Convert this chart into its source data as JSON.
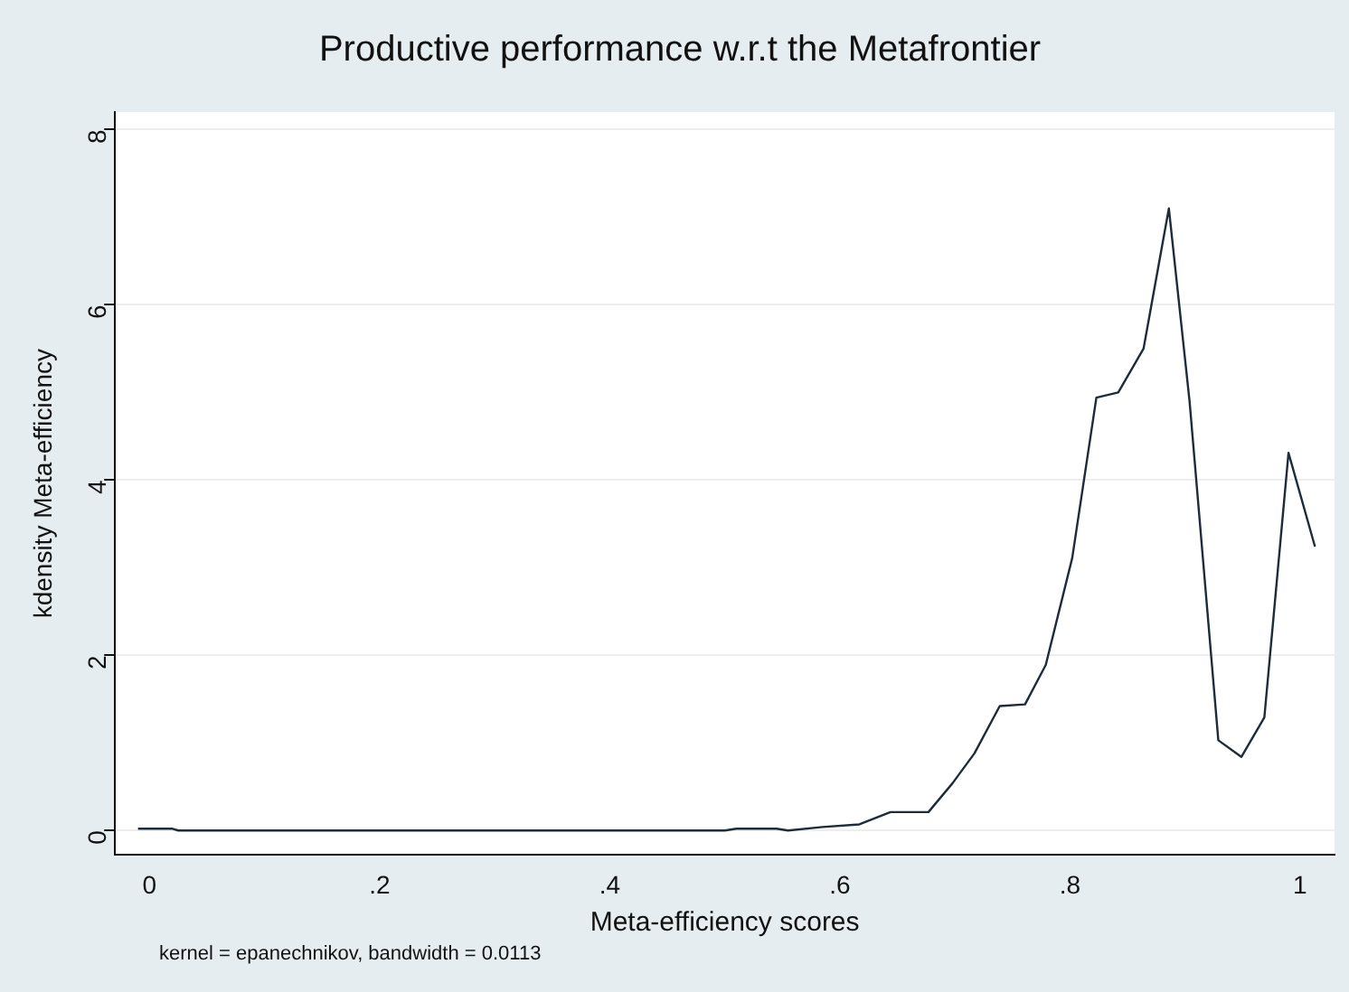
{
  "chart_data": {
    "type": "line",
    "title": "Productive performance w.r.t the Metafrontier",
    "xlabel": "Meta-efficiency scores",
    "ylabel": "kdensity Meta-efficiency",
    "annotations": [
      "kernel = epanechnikov, bandwidth = 0.0113"
    ],
    "x": [
      -0.01,
      0.02,
      0.025,
      0.5,
      0.51,
      0.545,
      0.555,
      0.585,
      0.617,
      0.644,
      0.677,
      0.698,
      0.717,
      0.739,
      0.761,
      0.779,
      0.802,
      0.823,
      0.842,
      0.864,
      0.886,
      0.904,
      0.929,
      0.949,
      0.969,
      0.99,
      1.013
    ],
    "series": [
      {
        "color": "#1c2c3c",
        "values": [
          0.02,
          0.02,
          0,
          0,
          0.02,
          0.02,
          0,
          0.04,
          0.07,
          0.21,
          0.21,
          0.54,
          0.88,
          1.42,
          1.44,
          1.89,
          3.11,
          4.94,
          5.0,
          5.5,
          7.1,
          4.9,
          1.03,
          0.84,
          1.29,
          4.31,
          3.24
        ]
      }
    ],
    "xlim": [
      -0.03,
      1.03
    ],
    "xticks": [
      {
        "value": 0,
        "label": "0"
      },
      {
        "value": 0.2,
        "label": ".2"
      },
      {
        "value": 0.4,
        "label": ".4"
      },
      {
        "value": 0.6,
        "label": ".6"
      },
      {
        "value": 0.8,
        "label": ".8"
      },
      {
        "value": 1,
        "label": "1"
      }
    ],
    "ylim": [
      -0.28,
      8.2
    ],
    "yticks": [
      0,
      2,
      4,
      6,
      8
    ],
    "grid": "y",
    "legend": false,
    "marker": "none",
    "line_style": "solid"
  }
}
